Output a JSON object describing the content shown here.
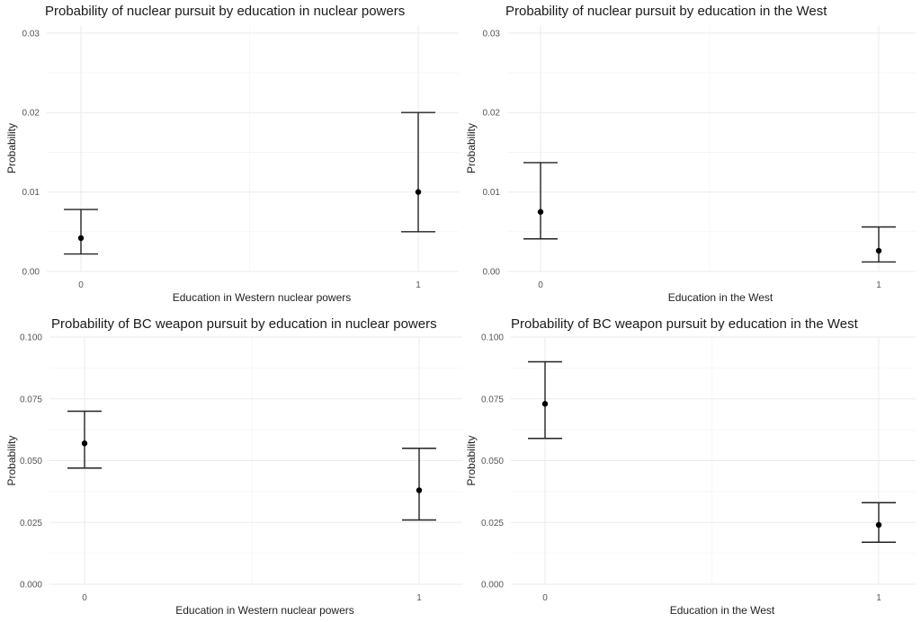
{
  "chart_data": [
    {
      "type": "scatter",
      "title": "Probability of nuclear pursuit by education in nuclear powers",
      "xlabel": "Education in Western nuclear powers",
      "ylabel": "Probability",
      "categories": [
        "0",
        "1"
      ],
      "ylim": [
        0,
        0.031
      ],
      "yticks": [
        "0.00",
        "0.01",
        "0.02",
        "0.03"
      ],
      "points": [
        {
          "x": "0",
          "y": 0.0042,
          "lower": 0.0022,
          "upper": 0.0078
        },
        {
          "x": "1",
          "y": 0.01,
          "lower": 0.005,
          "upper": 0.02
        }
      ],
      "grid": true
    },
    {
      "type": "scatter",
      "title": "Probability of nuclear pursuit by education in the West",
      "xlabel": "Education in the West",
      "ylabel": "Probability",
      "categories": [
        "0",
        "1"
      ],
      "ylim": [
        0,
        0.031
      ],
      "yticks": [
        "0.00",
        "0.01",
        "0.02",
        "0.03"
      ],
      "points": [
        {
          "x": "0",
          "y": 0.0075,
          "lower": 0.0041,
          "upper": 0.0137
        },
        {
          "x": "1",
          "y": 0.0026,
          "lower": 0.0012,
          "upper": 0.0056
        }
      ],
      "grid": true
    },
    {
      "type": "scatter",
      "title": "Probability of BC weapon pursuit by education in nuclear powers",
      "xlabel": "Education in Western nuclear powers",
      "ylabel": "Probability",
      "categories": [
        "0",
        "1"
      ],
      "ylim": [
        0,
        0.1
      ],
      "yticks": [
        "0.000",
        "0.025",
        "0.050",
        "0.075",
        "0.100"
      ],
      "points": [
        {
          "x": "0",
          "y": 0.057,
          "lower": 0.047,
          "upper": 0.07
        },
        {
          "x": "1",
          "y": 0.038,
          "lower": 0.026,
          "upper": 0.055
        }
      ],
      "grid": true
    },
    {
      "type": "scatter",
      "title": "Probability of BC weapon pursuit by education in the West",
      "xlabel": "Education in the West",
      "ylabel": "Probability",
      "categories": [
        "0",
        "1"
      ],
      "ylim": [
        0,
        0.1
      ],
      "yticks": [
        "0.000",
        "0.025",
        "0.050",
        "0.075",
        "0.100"
      ],
      "points": [
        {
          "x": "0",
          "y": 0.073,
          "lower": 0.059,
          "upper": 0.09
        },
        {
          "x": "1",
          "y": 0.024,
          "lower": 0.017,
          "upper": 0.033
        }
      ],
      "grid": true
    }
  ]
}
